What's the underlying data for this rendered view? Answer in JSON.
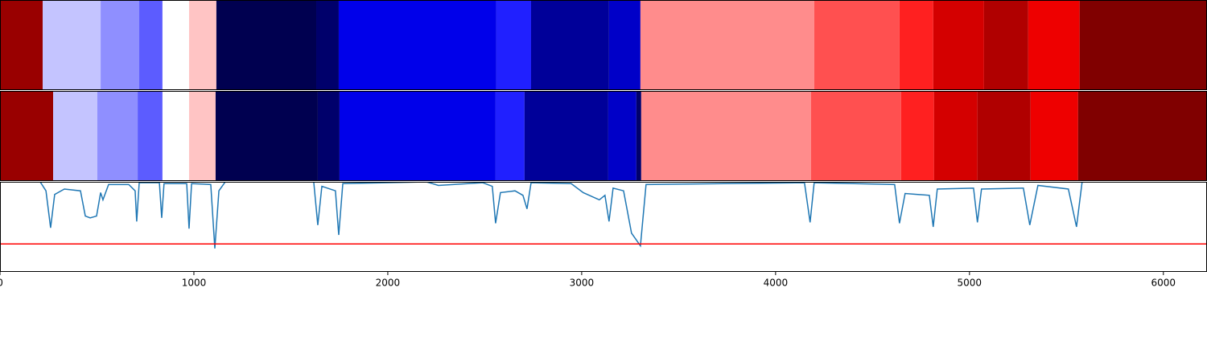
{
  "chart_data": [
    {
      "type": "segments",
      "xlim": [
        0,
        6225
      ],
      "x": [
        0,
        220,
        519,
        718,
        838,
        975,
        1116,
        1631,
        1747,
        2560,
        2739,
        3141,
        3303,
        4199,
        4639,
        4813,
        5075,
        5303,
        5568
      ],
      "colors": [
        "#990000",
        "#c4c4ff",
        "#8f8fff",
        "#5c5cff",
        "#ffffff",
        "#ffc4c4",
        "#000050",
        "#00006b",
        "#0000ea",
        "#2020ff",
        "#000099",
        "#0000c8",
        "#ff8c8c",
        "#ff5050",
        "#ff2020",
        "#d40000",
        "#b00000",
        "#ee0000",
        "#800000"
      ]
    },
    {
      "type": "segments",
      "xlim": [
        0,
        6225
      ],
      "x": [
        0,
        274,
        502,
        710,
        838,
        975,
        1112,
        1639,
        1751,
        2556,
        2705,
        3137,
        3282,
        3307,
        4183,
        4647,
        4817,
        5041,
        5315,
        5560
      ],
      "colors": [
        "#990000",
        "#c4c4ff",
        "#8f8fff",
        "#5c5cff",
        "#ffffff",
        "#ffc4c4",
        "#000050",
        "#00006b",
        "#0000ea",
        "#2020ff",
        "#000099",
        "#0000c8",
        "#00006b",
        "#ff8c8c",
        "#ff5050",
        "#ff2020",
        "#d40000",
        "#b00000",
        "#ee0000",
        "#800000"
      ]
    },
    {
      "type": "line",
      "xlim": [
        0,
        6225
      ],
      "ylim": [
        0,
        1
      ],
      "color": "#1f77b4",
      "xticks": [
        0,
        1000,
        2000,
        3000,
        4000,
        5000,
        6000
      ],
      "hline": {
        "value": 0.31,
        "color": "#ff0000"
      },
      "x": [
        0,
        207,
        237,
        261,
        282,
        332,
        415,
        440,
        465,
        498,
        519,
        531,
        560,
        664,
        697,
        705,
        718,
        822,
        834,
        846,
        963,
        975,
        988,
        1087,
        1108,
        1129,
        1162,
        1618,
        1639,
        1660,
        1730,
        1747,
        1768,
        2199,
        2261,
        2490,
        2539,
        2556,
        2581,
        2656,
        2697,
        2718,
        2739,
        2946,
        3008,
        3091,
        3120,
        3141,
        3162,
        3216,
        3257,
        3303,
        3332,
        4149,
        4178,
        4199,
        4614,
        4639,
        4668,
        4793,
        4813,
        4834,
        5021,
        5041,
        5062,
        5278,
        5311,
        5353,
        5510,
        5552,
        5581,
        6225
      ],
      "values": [
        1.0,
        1.0,
        0.9,
        0.49,
        0.86,
        0.92,
        0.9,
        0.62,
        0.6,
        0.62,
        0.88,
        0.8,
        0.97,
        0.97,
        0.9,
        0.56,
        0.99,
        0.99,
        0.6,
        0.98,
        0.98,
        0.48,
        0.98,
        0.97,
        0.26,
        0.9,
        1.0,
        1.0,
        0.52,
        0.95,
        0.9,
        0.41,
        0.98,
        1.0,
        0.96,
        0.99,
        0.95,
        0.54,
        0.88,
        0.9,
        0.85,
        0.7,
        0.99,
        0.98,
        0.88,
        0.8,
        0.85,
        0.56,
        0.93,
        0.9,
        0.43,
        0.29,
        0.97,
        0.99,
        0.55,
        0.99,
        0.97,
        0.54,
        0.87,
        0.85,
        0.5,
        0.92,
        0.93,
        0.55,
        0.92,
        0.93,
        0.52,
        0.96,
        0.92,
        0.5,
        1.0,
        1.0
      ]
    }
  ]
}
